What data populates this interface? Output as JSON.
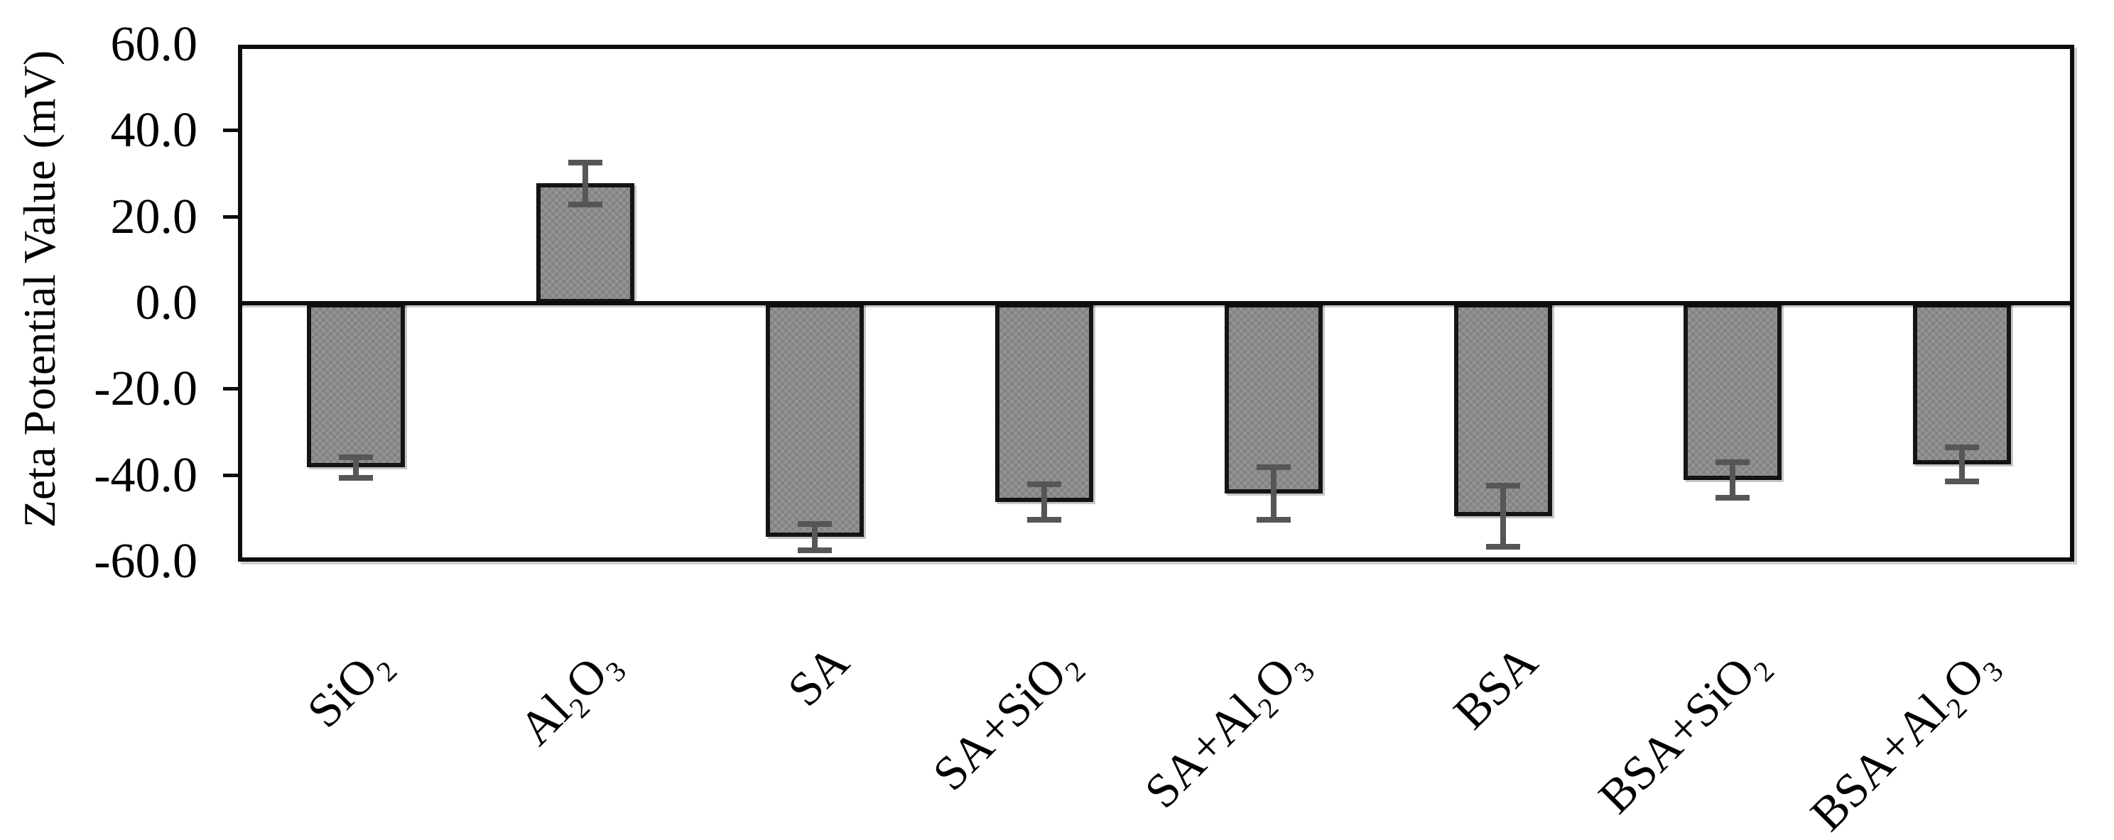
{
  "chart_data": {
    "type": "bar",
    "title": "",
    "xlabel": "",
    "ylabel": "Zeta Potential Value (mV)",
    "ylim": [
      -60,
      60
    ],
    "ytick_step": 20,
    "yticks": [
      60,
      40,
      20,
      0,
      -20,
      -40,
      -60
    ],
    "ytick_labels": [
      "60.0",
      "40.0",
      "20.0",
      "0.0",
      "-20.0",
      "-40.0",
      "-60.0"
    ],
    "categories": [
      "SiO₂",
      "Al₂O₃",
      "SA",
      "SA+SiO₂",
      "SA+Al₂O₃",
      "BSA",
      "BSA+SiO₂",
      "BSA+Al₂O₃"
    ],
    "series": [
      {
        "name": "Zeta Potential",
        "values": [
          -38.1,
          27.8,
          -54.3,
          -46.2,
          -44.2,
          -49.4,
          -41.0,
          -37.4
        ],
        "errors": [
          2.4,
          4.9,
          3.1,
          4.1,
          6.1,
          7.1,
          4.1,
          3.9
        ]
      }
    ],
    "grid": false,
    "legend": false,
    "error_bars": true,
    "colors": {
      "bar_fill": "#8b8b8b",
      "bar_border": "#141414",
      "error_bar": "#565656",
      "axis": "#0d0d0d",
      "background": "#ffffff",
      "text": "#000000"
    }
  }
}
